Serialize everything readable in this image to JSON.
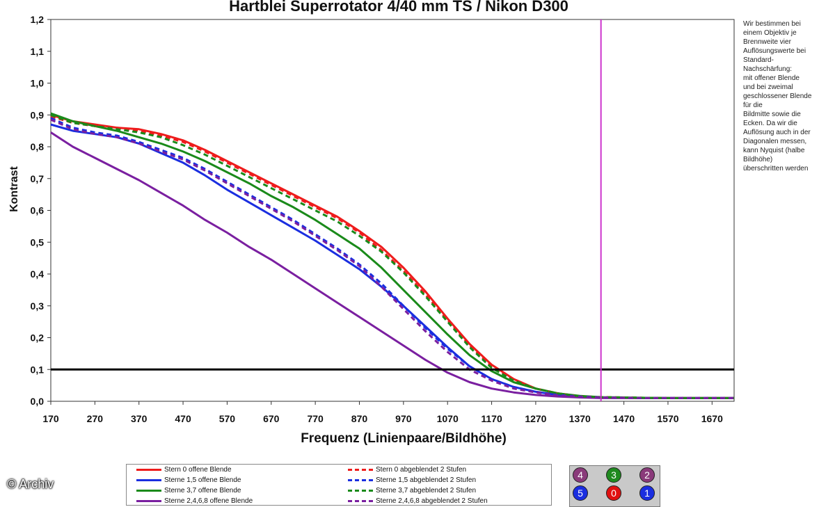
{
  "chart_data": {
    "type": "line",
    "title": "Hartblei Superrotator 4/40 mm TS / Nikon D300",
    "xlabel": "Frequenz (Linienpaare/Bildhöhe)",
    "ylabel": "Kontrast",
    "xlim": [
      170,
      1720
    ],
    "ylim": [
      0,
      1.2
    ],
    "x_ticks": [
      "170",
      "270",
      "370",
      "470",
      "570",
      "670",
      "770",
      "870",
      "970",
      "1070",
      "1170",
      "1270",
      "1370",
      "1470",
      "1570",
      "1670"
    ],
    "y_ticks": [
      "0,0",
      "0,1",
      "0,2",
      "0,3",
      "0,4",
      "0,5",
      "0,6",
      "0,7",
      "0,8",
      "0,9",
      "1,0",
      "1,1",
      "1,2"
    ],
    "grid": false,
    "legend_position": "bottom",
    "threshold_line": {
      "y": 0.1,
      "color": "#000000"
    },
    "nyquist_line": {
      "x": 1418,
      "color": "#cc33cc"
    },
    "x": [
      170,
      220,
      270,
      320,
      370,
      420,
      470,
      520,
      570,
      620,
      670,
      720,
      770,
      820,
      870,
      920,
      970,
      1020,
      1070,
      1120,
      1170,
      1220,
      1270,
      1320,
      1370,
      1420,
      1470,
      1520,
      1570,
      1620,
      1670,
      1720
    ],
    "series": [
      {
        "name": "Stern 0 offene Blende",
        "color": "#ee1c1c",
        "dash": false,
        "values": [
          0.9,
          0.88,
          0.87,
          0.86,
          0.855,
          0.84,
          0.82,
          0.79,
          0.755,
          0.72,
          0.685,
          0.65,
          0.615,
          0.58,
          0.535,
          0.485,
          0.42,
          0.345,
          0.26,
          0.18,
          0.115,
          0.07,
          0.04,
          0.025,
          0.015,
          0.012,
          0.011,
          0.01,
          0.01,
          0.01,
          0.01,
          0.01
        ]
      },
      {
        "name": "Sterne 1,5 offene Blende",
        "color": "#1a2ee0",
        "dash": false,
        "values": [
          0.87,
          0.85,
          0.84,
          0.83,
          0.81,
          0.78,
          0.75,
          0.71,
          0.665,
          0.625,
          0.585,
          0.545,
          0.505,
          0.46,
          0.415,
          0.36,
          0.3,
          0.235,
          0.17,
          0.11,
          0.07,
          0.045,
          0.03,
          0.02,
          0.015,
          0.012,
          0.011,
          0.01,
          0.01,
          0.01,
          0.01,
          0.01
        ]
      },
      {
        "name": "Sterne 3,7 offene Blende",
        "color": "#1a8a1a",
        "dash": false,
        "values": [
          0.905,
          0.88,
          0.865,
          0.85,
          0.83,
          0.81,
          0.785,
          0.755,
          0.72,
          0.685,
          0.645,
          0.61,
          0.57,
          0.525,
          0.48,
          0.42,
          0.35,
          0.28,
          0.21,
          0.145,
          0.095,
          0.06,
          0.04,
          0.025,
          0.017,
          0.013,
          0.012,
          0.011,
          0.01,
          0.01,
          0.01,
          0.01
        ]
      },
      {
        "name": "Sterne 2,4,6,8 offene Blende",
        "color": "#7a1fa0",
        "dash": false,
        "values": [
          0.845,
          0.8,
          0.765,
          0.73,
          0.695,
          0.655,
          0.615,
          0.57,
          0.53,
          0.485,
          0.445,
          0.4,
          0.355,
          0.31,
          0.265,
          0.22,
          0.175,
          0.13,
          0.09,
          0.06,
          0.04,
          0.028,
          0.02,
          0.015,
          0.012,
          0.01,
          0.01,
          0.01,
          0.01,
          0.01,
          0.01,
          0.01
        ]
      },
      {
        "name": "Stern 0 abgeblendet 2 Stufen",
        "color": "#ee1c1c",
        "dash": true,
        "values": [
          0.895,
          0.875,
          0.865,
          0.86,
          0.85,
          0.835,
          0.815,
          0.785,
          0.75,
          0.715,
          0.68,
          0.645,
          0.61,
          0.575,
          0.53,
          0.475,
          0.41,
          0.335,
          0.255,
          0.175,
          0.11,
          0.068,
          0.04,
          0.025,
          0.016,
          0.013,
          0.012,
          0.011,
          0.01,
          0.01,
          0.01,
          0.01
        ]
      },
      {
        "name": "Sterne 1,5 abgeblendet 2 Stufen",
        "color": "#1a2ee0",
        "dash": true,
        "values": [
          0.89,
          0.86,
          0.845,
          0.835,
          0.815,
          0.79,
          0.765,
          0.73,
          0.69,
          0.65,
          0.61,
          0.57,
          0.525,
          0.48,
          0.43,
          0.37,
          0.3,
          0.23,
          0.165,
          0.11,
          0.07,
          0.045,
          0.03,
          0.02,
          0.015,
          0.012,
          0.011,
          0.01,
          0.01,
          0.01,
          0.01,
          0.01
        ]
      },
      {
        "name": "Sterne 3,7 abgeblendet 2 Stufen",
        "color": "#1a8a1a",
        "dash": true,
        "values": [
          0.9,
          0.875,
          0.865,
          0.855,
          0.845,
          0.83,
          0.805,
          0.775,
          0.74,
          0.705,
          0.67,
          0.635,
          0.6,
          0.565,
          0.52,
          0.47,
          0.405,
          0.33,
          0.25,
          0.17,
          0.105,
          0.065,
          0.04,
          0.025,
          0.016,
          0.013,
          0.012,
          0.011,
          0.01,
          0.01,
          0.01,
          0.01
        ]
      },
      {
        "name": "Sterne 2,4,6,8 abgeblendet 2 Stufen",
        "color": "#7a1fa0",
        "dash": true,
        "values": [
          0.885,
          0.855,
          0.84,
          0.83,
          0.81,
          0.785,
          0.76,
          0.725,
          0.685,
          0.645,
          0.605,
          0.565,
          0.52,
          0.475,
          0.425,
          0.36,
          0.29,
          0.22,
          0.155,
          0.1,
          0.065,
          0.04,
          0.028,
          0.018,
          0.014,
          0.012,
          0.011,
          0.01,
          0.01,
          0.01,
          0.01,
          0.01
        ]
      }
    ]
  },
  "note_lines": [
    "Wir bestimmen bei",
    "einem Objektiv je",
    "Brennweite vier",
    "Auflösungswerte bei",
    "Standard-",
    "Nachschärfung:",
    "mit offener Blende",
    "und bei zweimal",
    "geschlossener Blende",
    "für die",
    "Bildmitte sowie die",
    "Ecken. Da wir die",
    "Auflösung auch in der",
    "Diagonalen messen,",
    "kann Nyquist (halbe",
    "Bildhöhe)",
    "überschritten werden"
  ],
  "position_markers": [
    {
      "label": "4",
      "color": "#8a3a7a"
    },
    {
      "label": "3",
      "color": "#1f8a1f"
    },
    {
      "label": "2",
      "color": "#8a3a7a"
    },
    {
      "label": "5",
      "color": "#1a2ee0"
    },
    {
      "label": "0",
      "color": "#e01010"
    },
    {
      "label": "1",
      "color": "#1a2ee0"
    }
  ],
  "watermark": "© Archiv"
}
